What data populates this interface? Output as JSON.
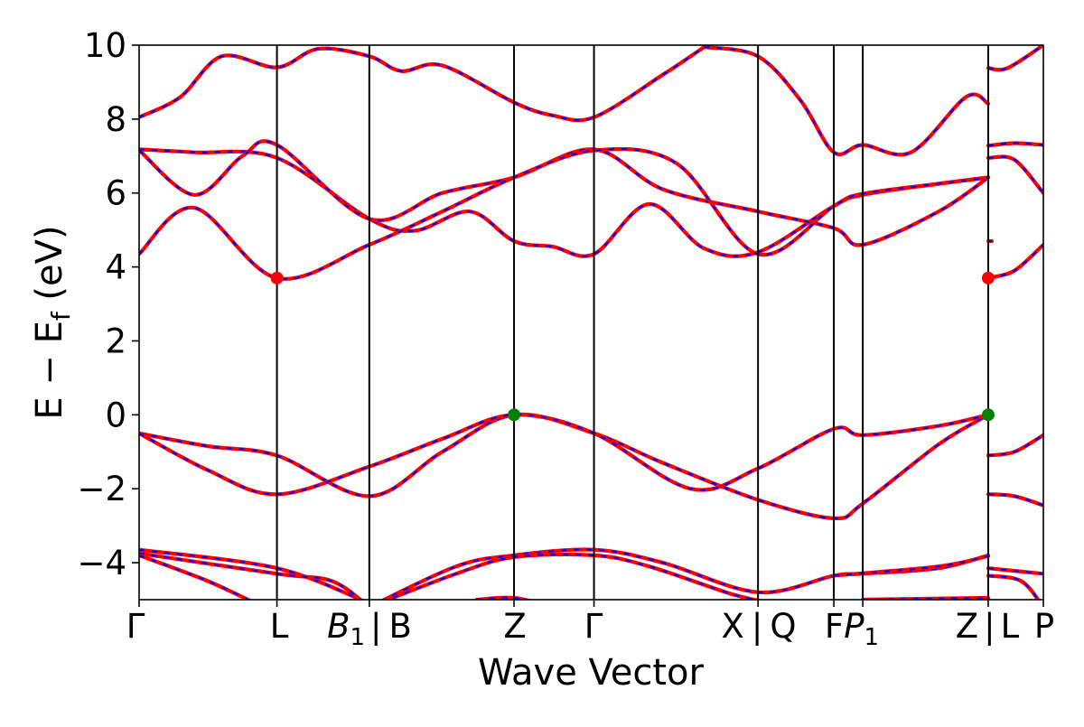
{
  "chart_data": {
    "type": "line",
    "title": "",
    "xlabel": "Wave Vector",
    "ylabel": "E − E_f (eV)",
    "ylabel_main": "E − E",
    "ylabel_sub": "f",
    "ylabel_unit": " (eV)",
    "ylim": [
      -5,
      10
    ],
    "grid": false,
    "legend": "none",
    "colors": {
      "line_a": "#ff0000",
      "line_b": "#0000ff",
      "vbm": "#008000",
      "cbm": "#ff0000"
    },
    "y_ticks": [
      {
        "value": 10,
        "label": "10"
      },
      {
        "value": 8,
        "label": "8"
      },
      {
        "value": 6,
        "label": "6"
      },
      {
        "value": 4,
        "label": "4"
      },
      {
        "value": 2,
        "label": "2"
      },
      {
        "value": 0,
        "label": "0"
      },
      {
        "value": -2,
        "label": "−2"
      },
      {
        "value": -4,
        "label": "−4"
      }
    ],
    "kpath": [
      {
        "k": 0.0,
        "label": "Γ"
      },
      {
        "k": 1.0,
        "label": "L"
      },
      {
        "k": 1.67,
        "label": "B1 | B"
      },
      {
        "k": 2.72,
        "label": "Z"
      },
      {
        "k": 3.3,
        "label": "Γ"
      },
      {
        "k": 4.49,
        "label": "X | Q"
      },
      {
        "k": 5.04,
        "label": "F"
      },
      {
        "k": 5.25,
        "label": "P1"
      },
      {
        "k": 6.16,
        "label": "Z | L"
      },
      {
        "k": 6.56,
        "label": "P"
      }
    ],
    "tick_text": {
      "gamma": "Γ",
      "L": "L",
      "B1_main": "B",
      "B1_sub": "1",
      "bar": "|",
      "B": "B",
      "Z": "Z",
      "X": "X",
      "Q": "Q",
      "F": "F",
      "P1_main": "P",
      "P1_sub": "1",
      "P": "P",
      "Lz": "L"
    },
    "bands": [
      {
        "name": "c4",
        "points": [
          [
            0,
            8.05
          ],
          [
            0.3,
            8.6
          ],
          [
            0.6,
            9.7
          ],
          [
            1.0,
            9.4
          ],
          [
            1.3,
            9.9
          ],
          [
            1.67,
            9.7
          ],
          [
            1.9,
            9.3
          ],
          [
            2.2,
            9.45
          ],
          [
            2.72,
            8.45
          ],
          [
            3.0,
            8.1
          ],
          [
            3.3,
            8.05
          ],
          [
            3.8,
            9.2
          ],
          [
            4.1,
            9.95
          ]
        ]
      },
      {
        "name": "c4b",
        "points": [
          [
            4.1,
            9.95
          ],
          [
            4.49,
            9.7
          ],
          [
            4.8,
            8.5
          ],
          [
            5.04,
            7.1
          ],
          [
            5.25,
            7.3
          ],
          [
            5.6,
            7.1
          ],
          [
            6.0,
            8.6
          ],
          [
            6.16,
            8.42
          ]
        ]
      },
      {
        "name": "c4c",
        "points": [
          [
            6.16,
            9.38
          ],
          [
            6.3,
            9.38
          ],
          [
            6.56,
            10.0
          ]
        ]
      },
      {
        "name": "c3",
        "points": [
          [
            0,
            7.18
          ],
          [
            0.4,
            7.1
          ],
          [
            1.0,
            6.95
          ],
          [
            1.67,
            5.3
          ],
          [
            2.0,
            4.98
          ],
          [
            2.4,
            5.5
          ],
          [
            2.72,
            4.7
          ],
          [
            3.0,
            4.55
          ],
          [
            3.3,
            4.35
          ],
          [
            3.7,
            5.7
          ],
          [
            4.1,
            4.5
          ],
          [
            4.49,
            4.4
          ],
          [
            5.04,
            5.65
          ],
          [
            5.25,
            5.95
          ],
          [
            5.8,
            6.25
          ],
          [
            6.16,
            6.42
          ]
        ]
      },
      {
        "name": "c3b",
        "points": [
          [
            6.16,
            7.28
          ],
          [
            6.35,
            7.35
          ],
          [
            6.56,
            7.3
          ]
        ]
      },
      {
        "name": "c2",
        "points": [
          [
            0,
            7.16
          ],
          [
            0.4,
            5.95
          ],
          [
            0.75,
            7.0
          ],
          [
            1.0,
            7.3
          ],
          [
            1.67,
            5.3
          ],
          [
            2.2,
            6.0
          ],
          [
            2.72,
            6.42
          ],
          [
            3.3,
            7.18
          ],
          [
            3.8,
            6.1
          ],
          [
            4.49,
            5.5
          ],
          [
            5.04,
            5.05
          ],
          [
            5.25,
            4.6
          ],
          [
            5.8,
            5.5
          ],
          [
            6.16,
            6.42
          ]
        ]
      },
      {
        "name": "c2b",
        "points": [
          [
            6.16,
            6.95
          ],
          [
            6.35,
            6.9
          ],
          [
            6.56,
            6.0
          ]
        ]
      },
      {
        "name": "c1",
        "points": [
          [
            0,
            4.35
          ],
          [
            0.4,
            5.6
          ],
          [
            1.0,
            3.7
          ],
          [
            1.67,
            4.6
          ],
          [
            2.2,
            5.5
          ],
          [
            2.72,
            6.42
          ],
          [
            3.3,
            7.15
          ],
          [
            3.9,
            6.8
          ],
          [
            4.49,
            4.35
          ],
          [
            5.04,
            5.65
          ],
          [
            5.25,
            5.98
          ],
          [
            5.8,
            6.25
          ],
          [
            6.16,
            6.42
          ]
        ]
      },
      {
        "name": "c1b",
        "points": [
          [
            6.16,
            4.7
          ]
        ]
      },
      {
        "name": "c1c",
        "points": [
          [
            6.16,
            3.7
          ],
          [
            6.35,
            3.9
          ],
          [
            6.56,
            4.6
          ]
        ]
      },
      {
        "name": "v1",
        "points": [
          [
            0,
            -0.5
          ],
          [
            0.5,
            -0.85
          ],
          [
            1.0,
            -1.1
          ],
          [
            1.67,
            -2.2
          ],
          [
            2.2,
            -1.0
          ],
          [
            2.72,
            0.0
          ],
          [
            3.3,
            -0.5
          ],
          [
            3.8,
            -1.3
          ],
          [
            4.49,
            -2.3
          ],
          [
            5.04,
            -2.8
          ],
          [
            5.25,
            -2.4
          ],
          [
            5.8,
            -0.8
          ],
          [
            6.16,
            0.0
          ]
        ]
      },
      {
        "name": "v1b",
        "points": [
          [
            6.16,
            -1.1
          ],
          [
            6.35,
            -1.0
          ],
          [
            6.56,
            -0.55
          ]
        ]
      },
      {
        "name": "v2",
        "points": [
          [
            0,
            -0.5
          ],
          [
            0.5,
            -1.5
          ],
          [
            1.0,
            -2.15
          ],
          [
            1.67,
            -1.4
          ],
          [
            2.2,
            -0.65
          ],
          [
            2.72,
            0.0
          ],
          [
            3.3,
            -0.5
          ],
          [
            4.0,
            -2.0
          ],
          [
            4.49,
            -1.45
          ],
          [
            5.04,
            -0.38
          ],
          [
            5.25,
            -0.55
          ],
          [
            5.8,
            -0.3
          ],
          [
            6.16,
            0.0
          ]
        ]
      },
      {
        "name": "v2b",
        "points": [
          [
            6.16,
            -2.15
          ],
          [
            6.35,
            -2.2
          ],
          [
            6.56,
            -2.45
          ]
        ]
      },
      {
        "name": "v3",
        "points": [
          [
            0,
            -3.65
          ],
          [
            1.0,
            -4.15
          ],
          [
            1.67,
            -5.1
          ]
        ]
      },
      {
        "name": "v3b",
        "points": [
          [
            1.67,
            -5.2
          ],
          [
            2.3,
            -4.1
          ],
          [
            2.72,
            -3.8
          ],
          [
            3.3,
            -3.65
          ],
          [
            3.8,
            -4.0
          ],
          [
            4.49,
            -4.8
          ],
          [
            5.04,
            -4.35
          ],
          [
            5.25,
            -4.3
          ],
          [
            5.8,
            -4.15
          ],
          [
            6.16,
            -3.8
          ]
        ]
      },
      {
        "name": "v3c",
        "points": [
          [
            6.16,
            -4.15
          ],
          [
            6.56,
            -4.3
          ]
        ]
      },
      {
        "name": "v4",
        "points": [
          [
            0,
            -3.75
          ],
          [
            1.0,
            -4.3
          ],
          [
            1.4,
            -4.5
          ],
          [
            1.67,
            -5.2
          ]
        ]
      },
      {
        "name": "v4b",
        "points": [
          [
            1.67,
            -5.2
          ],
          [
            2.3,
            -4.3
          ],
          [
            2.72,
            -3.85
          ],
          [
            3.3,
            -3.8
          ],
          [
            3.7,
            -4.1
          ],
          [
            4.3,
            -4.85
          ],
          [
            4.6,
            -5.1
          ]
        ]
      },
      {
        "name": "v4c",
        "points": [
          [
            5.04,
            -4.35
          ],
          [
            5.8,
            -4.1
          ],
          [
            6.16,
            -3.82
          ]
        ]
      },
      {
        "name": "v5",
        "points": [
          [
            0,
            -3.8
          ],
          [
            0.5,
            -4.5
          ],
          [
            0.9,
            -5.2
          ]
        ]
      },
      {
        "name": "v5b",
        "points": [
          [
            2.45,
            -5.0
          ],
          [
            2.72,
            -4.95
          ],
          [
            3.0,
            -5.2
          ]
        ]
      },
      {
        "name": "v5c",
        "points": [
          [
            5.25,
            -5.0
          ],
          [
            6.16,
            -4.95
          ]
        ]
      },
      {
        "name": "v5d",
        "points": [
          [
            6.16,
            -4.35
          ],
          [
            6.4,
            -4.5
          ],
          [
            6.56,
            -5.2
          ]
        ]
      }
    ],
    "markers": [
      {
        "name": "cbm-L",
        "k": 1.0,
        "E": 3.7,
        "color": "#ff0000"
      },
      {
        "name": "cbm-L2",
        "k": 6.16,
        "E": 3.7,
        "color": "#ff0000"
      },
      {
        "name": "vbm-Z",
        "k": 2.72,
        "E": 0.0,
        "color": "#008000"
      },
      {
        "name": "vbm-Z2",
        "k": 6.16,
        "E": 0.0,
        "color": "#008000"
      }
    ]
  }
}
